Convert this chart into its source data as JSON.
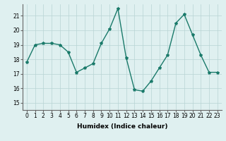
{
  "x": [
    0,
    1,
    2,
    3,
    4,
    5,
    6,
    7,
    8,
    9,
    10,
    11,
    12,
    13,
    14,
    15,
    16,
    17,
    18,
    19,
    20,
    21,
    22,
    23
  ],
  "y": [
    17.8,
    19.0,
    19.1,
    19.1,
    19.0,
    18.5,
    17.1,
    17.4,
    17.7,
    19.1,
    20.1,
    21.5,
    18.1,
    15.9,
    15.8,
    16.5,
    17.4,
    18.3,
    20.5,
    21.1,
    19.7,
    18.3,
    17.1,
    17.1
  ],
  "line_color": "#1a7a6a",
  "marker": "*",
  "marker_size": 3,
  "bg_color": "#dff0f0",
  "grid_color": "#b8d4d4",
  "xlabel": "Humidex (Indice chaleur)",
  "xlim": [
    -0.5,
    23.5
  ],
  "ylim": [
    14.5,
    21.8
  ],
  "xticks": [
    0,
    1,
    2,
    3,
    4,
    5,
    6,
    7,
    8,
    9,
    10,
    11,
    12,
    13,
    14,
    15,
    16,
    17,
    18,
    19,
    20,
    21,
    22,
    23
  ],
  "yticks": [
    15,
    16,
    17,
    18,
    19,
    20,
    21
  ],
  "tick_fontsize": 5.5,
  "label_fontsize": 6.5,
  "line_width": 1.0
}
